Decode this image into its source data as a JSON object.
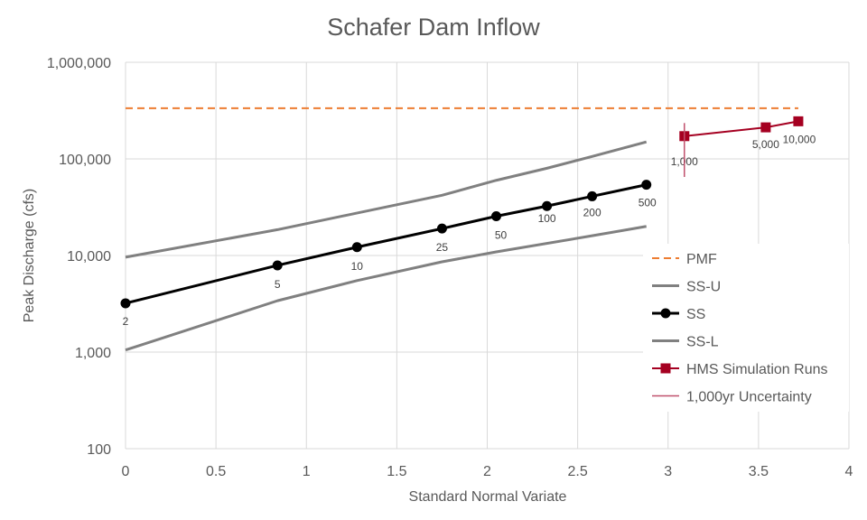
{
  "chart_data": {
    "type": "line",
    "title": "Schafer Dam Inflow",
    "xlabel": "Standard Normal Variate",
    "ylabel": "Peak Discharge (cfs)",
    "xlim": [
      0,
      4
    ],
    "ylim": [
      100,
      1000000
    ],
    "yscale": "log",
    "x_ticks": [
      {
        "value": 0,
        "label": "0"
      },
      {
        "value": 0.5,
        "label": "0.5"
      },
      {
        "value": 1,
        "label": "1"
      },
      {
        "value": 1.5,
        "label": "1.5"
      },
      {
        "value": 2,
        "label": "2"
      },
      {
        "value": 2.5,
        "label": "2.5"
      },
      {
        "value": 3,
        "label": "3"
      },
      {
        "value": 3.5,
        "label": "3.5"
      },
      {
        "value": 4,
        "label": "4"
      }
    ],
    "y_ticks": [
      {
        "value": 100,
        "label": "100"
      },
      {
        "value": 1000,
        "label": "1,000"
      },
      {
        "value": 10000,
        "label": "10,000"
      },
      {
        "value": 100000,
        "label": "100,000"
      },
      {
        "value": 1000000,
        "label": "1,000,000"
      }
    ],
    "grid": "horizontal and vertical",
    "legend_position": "right",
    "series": [
      {
        "name": "PMF",
        "color": "#ED7D31",
        "style": "dashed",
        "points": [
          {
            "x": 0,
            "y": 335000
          },
          {
            "x": 3.72,
            "y": 335000
          }
        ]
      },
      {
        "name": "SS-U",
        "color": "#808080",
        "style": "solid",
        "points": [
          {
            "x": 0,
            "y": 9600
          },
          {
            "x": 0.84,
            "y": 18500
          },
          {
            "x": 1.75,
            "y": 42000
          },
          {
            "x": 2.05,
            "y": 60000
          },
          {
            "x": 2.33,
            "y": 80000
          },
          {
            "x": 2.58,
            "y": 106000
          },
          {
            "x": 2.88,
            "y": 150000
          }
        ]
      },
      {
        "name": "SS",
        "color": "#000000",
        "style": "solid-markers",
        "points": [
          {
            "x": 0,
            "y": 3200,
            "label": "2"
          },
          {
            "x": 0.84,
            "y": 7900,
            "label": "5"
          },
          {
            "x": 1.28,
            "y": 12200,
            "label": "10"
          },
          {
            "x": 1.75,
            "y": 19000,
            "label": "25"
          },
          {
            "x": 2.05,
            "y": 25500,
            "label": "50"
          },
          {
            "x": 2.33,
            "y": 32500,
            "label": "100"
          },
          {
            "x": 2.58,
            "y": 41000,
            "label": "200"
          },
          {
            "x": 2.88,
            "y": 54000,
            "label": "500"
          }
        ]
      },
      {
        "name": "SS-L",
        "color": "#808080",
        "style": "solid",
        "points": [
          {
            "x": 0,
            "y": 1050
          },
          {
            "x": 0.84,
            "y": 3400
          },
          {
            "x": 1.28,
            "y": 5500
          },
          {
            "x": 1.75,
            "y": 8600
          },
          {
            "x": 2.05,
            "y": 10900
          },
          {
            "x": 2.58,
            "y": 16000
          },
          {
            "x": 2.88,
            "y": 20000
          }
        ]
      },
      {
        "name": "HMS Simulation Runs",
        "color": "#A50021",
        "style": "solid-square-markers",
        "points": [
          {
            "x": 3.09,
            "y": 172000,
            "label": "1,000"
          },
          {
            "x": 3.54,
            "y": 212000,
            "label": "5,000"
          },
          {
            "x": 3.72,
            "y": 245000,
            "label": "10,000"
          }
        ]
      },
      {
        "name": "1,000yr Uncertainty",
        "color": "#C0506D",
        "style": "thin-vertical",
        "points": [
          {
            "x": 3.09,
            "y": 65000
          },
          {
            "x": 3.09,
            "y": 235000
          }
        ]
      }
    ]
  }
}
